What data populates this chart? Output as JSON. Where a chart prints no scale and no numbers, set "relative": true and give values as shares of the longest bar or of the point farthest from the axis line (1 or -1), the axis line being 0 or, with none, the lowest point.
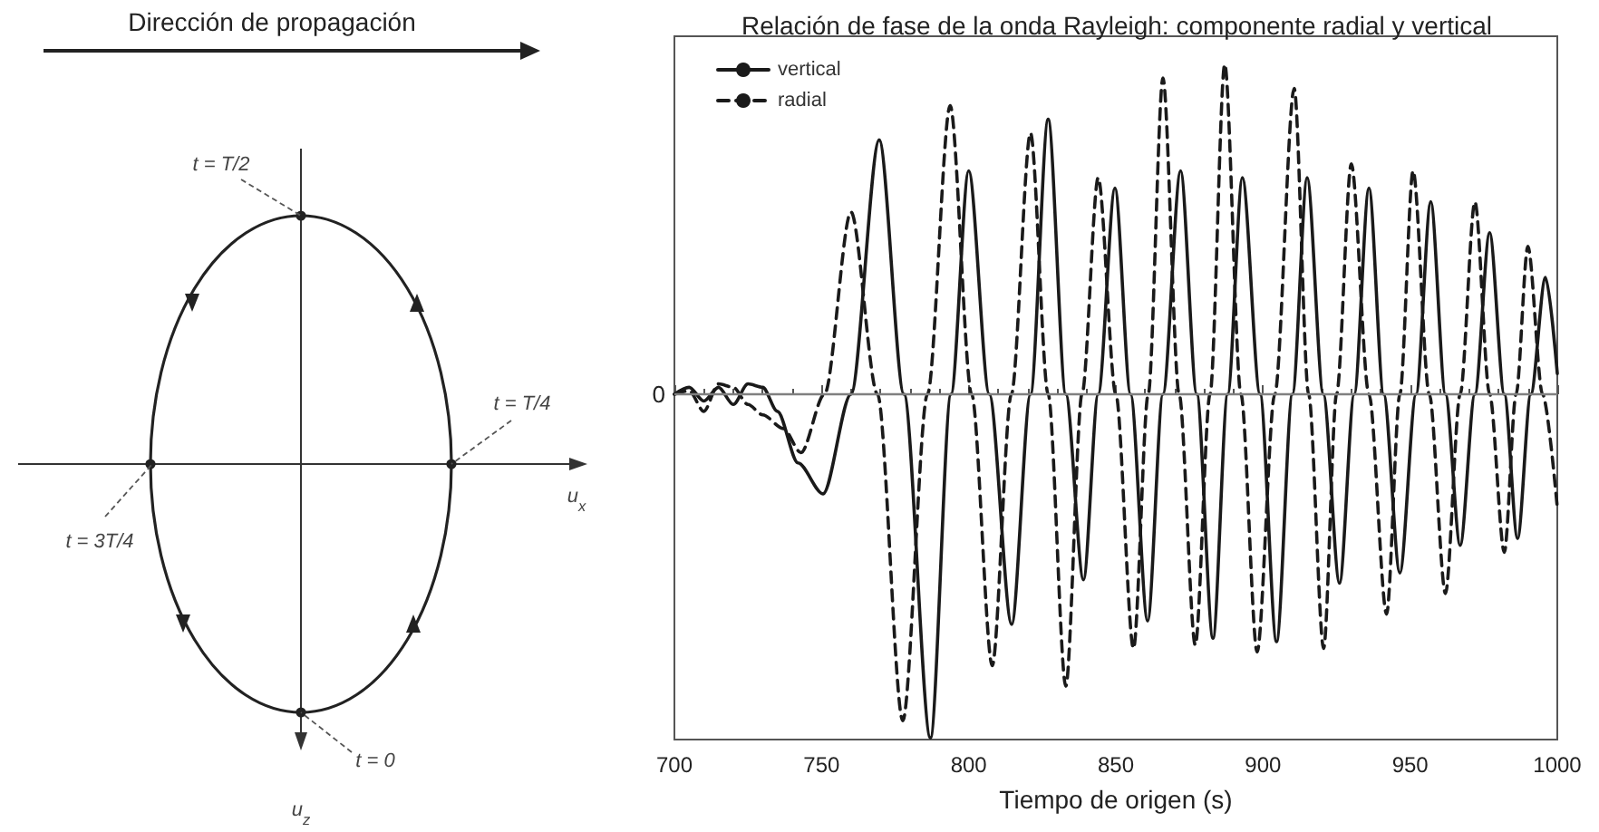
{
  "chart_data": [
    {
      "type": "other",
      "title": "Dirección de propagación",
      "annotations": [
        "t = T/2",
        "t = T/4",
        "t = 3T/4",
        "t = 0",
        "u$_{x}$",
        "u$_{z}$"
      ]
    },
    {
      "type": "line",
      "title": "Relación de fase de la onda Rayleigh: componente radial y vertical",
      "xlabel": "Tiempo de origen (s)",
      "relative": true,
      "xlim": [
        700,
        1000
      ],
      "xticks": [
        700,
        750,
        800,
        850,
        900,
        950,
        1000
      ],
      "legend": "top left",
      "grid": false,
      "marker": "none",
      "ref_lines": [
        {
          "axis": "y",
          "value": 0,
          "label": "0",
          "color": "#808080"
        }
      ],
      "series": [
        {
          "name": "vertical",
          "color": "#1a1a1a",
          "line_style": "solid",
          "x": [
            700,
            705,
            710,
            715,
            720,
            725,
            730,
            735,
            742,
            750.5,
            760,
            769.6,
            778,
            787,
            794,
            800,
            807,
            814.6,
            821,
            827,
            833,
            839,
            844,
            849.7,
            855,
            860.8,
            866,
            872,
            877.5,
            883,
            888,
            893,
            899,
            904.6,
            910,
            915,
            920.5,
            926,
            931,
            936,
            941,
            946.5,
            952,
            957,
            962,
            967,
            972,
            977,
            982,
            986.5,
            991,
            996,
            1000
          ],
          "values": [
            0,
            0.02,
            -0.02,
            0.02,
            -0.03,
            0.03,
            0.02,
            -0.05,
            -0.2,
            -0.29,
            0,
            0.74,
            0,
            -1,
            0,
            0.65,
            0,
            -0.67,
            0,
            0.8,
            0,
            -0.54,
            0,
            0.6,
            0,
            -0.66,
            0,
            0.65,
            0,
            -0.71,
            0,
            0.63,
            0,
            -0.72,
            0,
            0.63,
            0,
            -0.55,
            0,
            0.6,
            0,
            -0.52,
            0,
            0.56,
            0,
            -0.44,
            0,
            0.47,
            0,
            -0.42,
            0,
            0.34,
            0.06
          ]
        },
        {
          "name": "radial",
          "color": "#1a1a1a",
          "line_style": "dashed",
          "x": [
            700,
            705,
            710,
            715,
            720,
            725,
            730,
            737,
            743,
            751,
            760,
            769,
            777.6,
            786,
            793.7,
            801,
            808,
            814.5,
            821,
            827,
            833,
            838.5,
            844,
            850,
            856,
            861,
            866,
            871.5,
            877,
            882,
            887,
            892.5,
            898,
            904,
            910.6,
            915.5,
            920.6,
            925,
            930,
            936,
            942,
            946.5,
            951,
            956.5,
            962,
            967,
            972,
            977,
            982,
            986,
            990,
            995,
            1000
          ],
          "values": [
            0,
            0.01,
            -0.05,
            0.03,
            0.02,
            -0.03,
            -0.06,
            -0.1,
            -0.17,
            0,
            0.53,
            0,
            -0.95,
            0,
            0.84,
            0,
            -0.79,
            0,
            0.76,
            0,
            -0.85,
            0,
            0.63,
            0,
            -0.74,
            0,
            0.92,
            0,
            -0.73,
            0,
            0.96,
            0,
            -0.75,
            0,
            0.89,
            0,
            -0.74,
            0,
            0.67,
            0,
            -0.64,
            0,
            0.65,
            0,
            -0.58,
            0,
            0.56,
            0,
            -0.46,
            0,
            0.43,
            0,
            -0.33
          ]
        }
      ]
    }
  ]
}
